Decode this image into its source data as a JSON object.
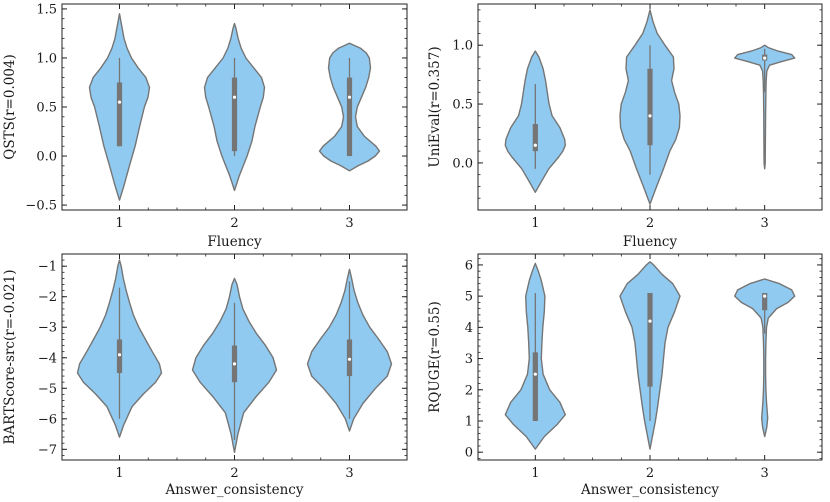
{
  "style": {
    "violin_fill": "#90CAF0",
    "violin_edge": "#757575",
    "box_color": "#757575",
    "median_color": "#ffffff"
  },
  "chart_data": [
    {
      "type": "violin",
      "xlabel": "Fluency",
      "ylabel": "QSTS(r=0.004)",
      "ylim": [
        -0.55,
        1.55
      ],
      "yticks": [
        -0.5,
        0.0,
        0.5,
        1.0,
        1.5
      ],
      "ytick_labels": [
        "−0.5",
        "0.0",
        "0.5",
        "1.0",
        "1.5"
      ],
      "categories": [
        "1",
        "2",
        "3"
      ],
      "violins": [
        {
          "min": -0.45,
          "max": 1.45,
          "q1": 0.1,
          "median": 0.55,
          "q3": 0.75,
          "whisker_low": 0.1,
          "whisker_high": 1.0,
          "profile": [
            [
              -0.45,
              0.0
            ],
            [
              -0.3,
              0.15
            ],
            [
              -0.1,
              0.33
            ],
            [
              0.1,
              0.52
            ],
            [
              0.3,
              0.67
            ],
            [
              0.5,
              0.83
            ],
            [
              0.6,
              0.95
            ],
            [
              0.7,
              1.0
            ],
            [
              0.8,
              0.88
            ],
            [
              0.9,
              0.62
            ],
            [
              1.0,
              0.4
            ],
            [
              1.1,
              0.25
            ],
            [
              1.2,
              0.15
            ],
            [
              1.35,
              0.06
            ],
            [
              1.45,
              0.0
            ]
          ]
        },
        {
          "min": -0.35,
          "max": 1.35,
          "q1": 0.05,
          "median": 0.6,
          "q3": 0.8,
          "whisker_low": 0.0,
          "whisker_high": 1.0,
          "profile": [
            [
              -0.35,
              0.0
            ],
            [
              -0.2,
              0.16
            ],
            [
              0.0,
              0.42
            ],
            [
              0.15,
              0.58
            ],
            [
              0.3,
              0.68
            ],
            [
              0.5,
              0.86
            ],
            [
              0.6,
              0.96
            ],
            [
              0.7,
              1.0
            ],
            [
              0.8,
              0.9
            ],
            [
              0.9,
              0.64
            ],
            [
              1.0,
              0.38
            ],
            [
              1.1,
              0.22
            ],
            [
              1.2,
              0.12
            ],
            [
              1.3,
              0.05
            ],
            [
              1.35,
              0.0
            ]
          ]
        },
        {
          "min": -0.15,
          "max": 1.15,
          "q1": 0.0,
          "median": 0.6,
          "q3": 0.8,
          "whisker_low": 0.0,
          "whisker_high": 1.0,
          "profile": [
            [
              -0.15,
              0.0
            ],
            [
              -0.1,
              0.28
            ],
            [
              -0.05,
              0.62
            ],
            [
              0.0,
              0.86
            ],
            [
              0.05,
              1.0
            ],
            [
              0.1,
              0.88
            ],
            [
              0.2,
              0.5
            ],
            [
              0.3,
              0.26
            ],
            [
              0.4,
              0.2
            ],
            [
              0.5,
              0.26
            ],
            [
              0.6,
              0.4
            ],
            [
              0.7,
              0.54
            ],
            [
              0.8,
              0.64
            ],
            [
              0.9,
              0.7
            ],
            [
              1.0,
              0.66
            ],
            [
              1.05,
              0.56
            ],
            [
              1.1,
              0.36
            ],
            [
              1.15,
              0.0
            ]
          ]
        }
      ]
    },
    {
      "type": "violin",
      "xlabel": "Fluency",
      "ylabel": "UniEval(r=0.357)",
      "ylim": [
        -0.4,
        1.35
      ],
      "yticks": [
        0.0,
        0.5,
        1.0
      ],
      "ytick_labels": [
        "0.0",
        "0.5",
        "1.0"
      ],
      "categories": [
        "1",
        "2",
        "3"
      ],
      "violins": [
        {
          "min": -0.25,
          "max": 0.95,
          "q1": 0.1,
          "median": 0.15,
          "q3": 0.33,
          "whisker_low": -0.05,
          "whisker_high": 0.67,
          "profile": [
            [
              -0.25,
              0.0
            ],
            [
              -0.15,
              0.22
            ],
            [
              -0.05,
              0.45
            ],
            [
              0.05,
              0.78
            ],
            [
              0.1,
              0.92
            ],
            [
              0.15,
              1.0
            ],
            [
              0.2,
              0.98
            ],
            [
              0.3,
              0.82
            ],
            [
              0.4,
              0.56
            ],
            [
              0.5,
              0.46
            ],
            [
              0.6,
              0.4
            ],
            [
              0.7,
              0.34
            ],
            [
              0.8,
              0.26
            ],
            [
              0.9,
              0.12
            ],
            [
              0.95,
              0.0
            ]
          ]
        },
        {
          "min": -0.35,
          "max": 1.3,
          "q1": 0.15,
          "median": 0.4,
          "q3": 0.8,
          "whisker_low": -0.1,
          "whisker_high": 1.0,
          "profile": [
            [
              -0.35,
              0.0
            ],
            [
              -0.2,
              0.22
            ],
            [
              -0.05,
              0.45
            ],
            [
              0.1,
              0.66
            ],
            [
              0.2,
              0.86
            ],
            [
              0.3,
              0.98
            ],
            [
              0.4,
              1.0
            ],
            [
              0.5,
              0.96
            ],
            [
              0.6,
              0.82
            ],
            [
              0.7,
              0.72
            ],
            [
              0.8,
              0.8
            ],
            [
              0.9,
              0.78
            ],
            [
              1.0,
              0.5
            ],
            [
              1.1,
              0.24
            ],
            [
              1.2,
              0.1
            ],
            [
              1.3,
              0.0
            ]
          ]
        },
        {
          "min": -0.05,
          "max": 1.0,
          "q1": 0.87,
          "median": 0.89,
          "q3": 0.92,
          "whisker_low": 0.6,
          "whisker_high": 0.97,
          "profile": [
            [
              -0.05,
              0.0
            ],
            [
              0.0,
              0.018
            ],
            [
              0.2,
              0.025
            ],
            [
              0.4,
              0.03
            ],
            [
              0.6,
              0.04
            ],
            [
              0.7,
              0.05
            ],
            [
              0.78,
              0.07
            ],
            [
              0.83,
              0.16
            ],
            [
              0.86,
              0.55
            ],
            [
              0.89,
              1.0
            ],
            [
              0.92,
              0.9
            ],
            [
              0.95,
              0.45
            ],
            [
              0.98,
              0.12
            ],
            [
              1.0,
              0.0
            ]
          ]
        }
      ]
    },
    {
      "type": "violin",
      "xlabel": "Answer_consistency",
      "ylabel": "BARTScore-src(r=-0.021)",
      "ylim": [
        -7.35,
        -0.6
      ],
      "yticks": [
        -7,
        -6,
        -5,
        -4,
        -3,
        -2,
        -1
      ],
      "ytick_labels": [
        "−7",
        "−6",
        "−5",
        "−4",
        "−3",
        "−2",
        "−1"
      ],
      "categories": [
        "1",
        "2",
        "3"
      ],
      "violins": [
        {
          "min": -6.6,
          "max": -0.8,
          "q1": -4.5,
          "median": -3.9,
          "q3": -3.4,
          "whisker_low": -6.0,
          "whisker_high": -1.7,
          "profile": [
            [
              -6.6,
              0.0
            ],
            [
              -6.2,
              0.1
            ],
            [
              -5.6,
              0.3
            ],
            [
              -5.2,
              0.56
            ],
            [
              -4.8,
              0.86
            ],
            [
              -4.5,
              1.0
            ],
            [
              -4.2,
              0.95
            ],
            [
              -3.8,
              0.78
            ],
            [
              -3.4,
              0.62
            ],
            [
              -3.0,
              0.46
            ],
            [
              -2.6,
              0.33
            ],
            [
              -2.2,
              0.24
            ],
            [
              -1.8,
              0.16
            ],
            [
              -1.4,
              0.09
            ],
            [
              -1.0,
              0.04
            ],
            [
              -0.8,
              0.0
            ]
          ]
        },
        {
          "min": -7.1,
          "max": -1.4,
          "q1": -4.8,
          "median": -4.2,
          "q3": -3.6,
          "whisker_low": -6.7,
          "whisker_high": -2.2,
          "profile": [
            [
              -7.1,
              0.0
            ],
            [
              -6.5,
              0.08
            ],
            [
              -5.8,
              0.22
            ],
            [
              -5.3,
              0.5
            ],
            [
              -4.8,
              0.82
            ],
            [
              -4.4,
              1.0
            ],
            [
              -4.0,
              0.92
            ],
            [
              -3.6,
              0.74
            ],
            [
              -3.2,
              0.52
            ],
            [
              -2.8,
              0.34
            ],
            [
              -2.4,
              0.2
            ],
            [
              -2.0,
              0.12
            ],
            [
              -1.6,
              0.06
            ],
            [
              -1.4,
              0.0
            ]
          ]
        },
        {
          "min": -6.4,
          "max": -1.1,
          "q1": -4.6,
          "median": -4.05,
          "q3": -3.4,
          "whisker_low": -6.0,
          "whisker_high": -1.5,
          "profile": [
            [
              -6.4,
              0.0
            ],
            [
              -6.0,
              0.1
            ],
            [
              -5.5,
              0.32
            ],
            [
              -5.0,
              0.62
            ],
            [
              -4.6,
              0.9
            ],
            [
              -4.2,
              1.0
            ],
            [
              -3.8,
              0.9
            ],
            [
              -3.4,
              0.7
            ],
            [
              -3.0,
              0.48
            ],
            [
              -2.6,
              0.32
            ],
            [
              -2.2,
              0.2
            ],
            [
              -1.8,
              0.11
            ],
            [
              -1.4,
              0.05
            ],
            [
              -1.1,
              0.0
            ]
          ]
        }
      ]
    },
    {
      "type": "violin",
      "xlabel": "Answer_consistency",
      "ylabel": "RQUGE(r=0.55)",
      "ylim": [
        -0.25,
        6.35
      ],
      "yticks": [
        0,
        1,
        2,
        3,
        4,
        5,
        6
      ],
      "ytick_labels": [
        "0",
        "1",
        "2",
        "3",
        "4",
        "5",
        "6"
      ],
      "categories": [
        "1",
        "2",
        "3"
      ],
      "violins": [
        {
          "min": 0.1,
          "max": 6.05,
          "q1": 1.0,
          "median": 2.5,
          "q3": 3.2,
          "whisker_low": 1.0,
          "whisker_high": 5.1,
          "profile": [
            [
              0.1,
              0.0
            ],
            [
              0.5,
              0.3
            ],
            [
              0.9,
              0.74
            ],
            [
              1.2,
              1.0
            ],
            [
              1.6,
              0.82
            ],
            [
              2.0,
              0.48
            ],
            [
              2.5,
              0.26
            ],
            [
              3.0,
              0.2
            ],
            [
              3.5,
              0.22
            ],
            [
              4.0,
              0.25
            ],
            [
              4.5,
              0.3
            ],
            [
              5.0,
              0.32
            ],
            [
              5.5,
              0.2
            ],
            [
              5.8,
              0.1
            ],
            [
              6.05,
              0.0
            ]
          ]
        },
        {
          "min": 0.1,
          "max": 6.1,
          "q1": 2.1,
          "median": 4.2,
          "q3": 5.1,
          "whisker_low": 1.0,
          "whisker_high": 5.1,
          "profile": [
            [
              0.1,
              0.0
            ],
            [
              0.5,
              0.08
            ],
            [
              1.0,
              0.18
            ],
            [
              1.5,
              0.26
            ],
            [
              2.0,
              0.33
            ],
            [
              2.5,
              0.4
            ],
            [
              3.0,
              0.45
            ],
            [
              3.5,
              0.5
            ],
            [
              4.0,
              0.6
            ],
            [
              4.5,
              0.82
            ],
            [
              5.0,
              1.0
            ],
            [
              5.4,
              0.76
            ],
            [
              5.7,
              0.4
            ],
            [
              6.0,
              0.12
            ],
            [
              6.1,
              0.0
            ]
          ]
        },
        {
          "min": 0.5,
          "max": 5.55,
          "q1": 4.55,
          "median": 5.0,
          "q3": 5.1,
          "whisker_low": 3.8,
          "whisker_high": 5.1,
          "profile": [
            [
              0.5,
              0.0
            ],
            [
              0.8,
              0.07
            ],
            [
              1.1,
              0.1
            ],
            [
              1.6,
              0.06
            ],
            [
              2.0,
              0.04
            ],
            [
              2.5,
              0.03
            ],
            [
              3.0,
              0.03
            ],
            [
              3.5,
              0.04
            ],
            [
              4.0,
              0.06
            ],
            [
              4.3,
              0.12
            ],
            [
              4.6,
              0.4
            ],
            [
              4.8,
              0.78
            ],
            [
              5.0,
              1.0
            ],
            [
              5.2,
              0.9
            ],
            [
              5.4,
              0.5
            ],
            [
              5.55,
              0.0
            ]
          ]
        }
      ]
    }
  ]
}
